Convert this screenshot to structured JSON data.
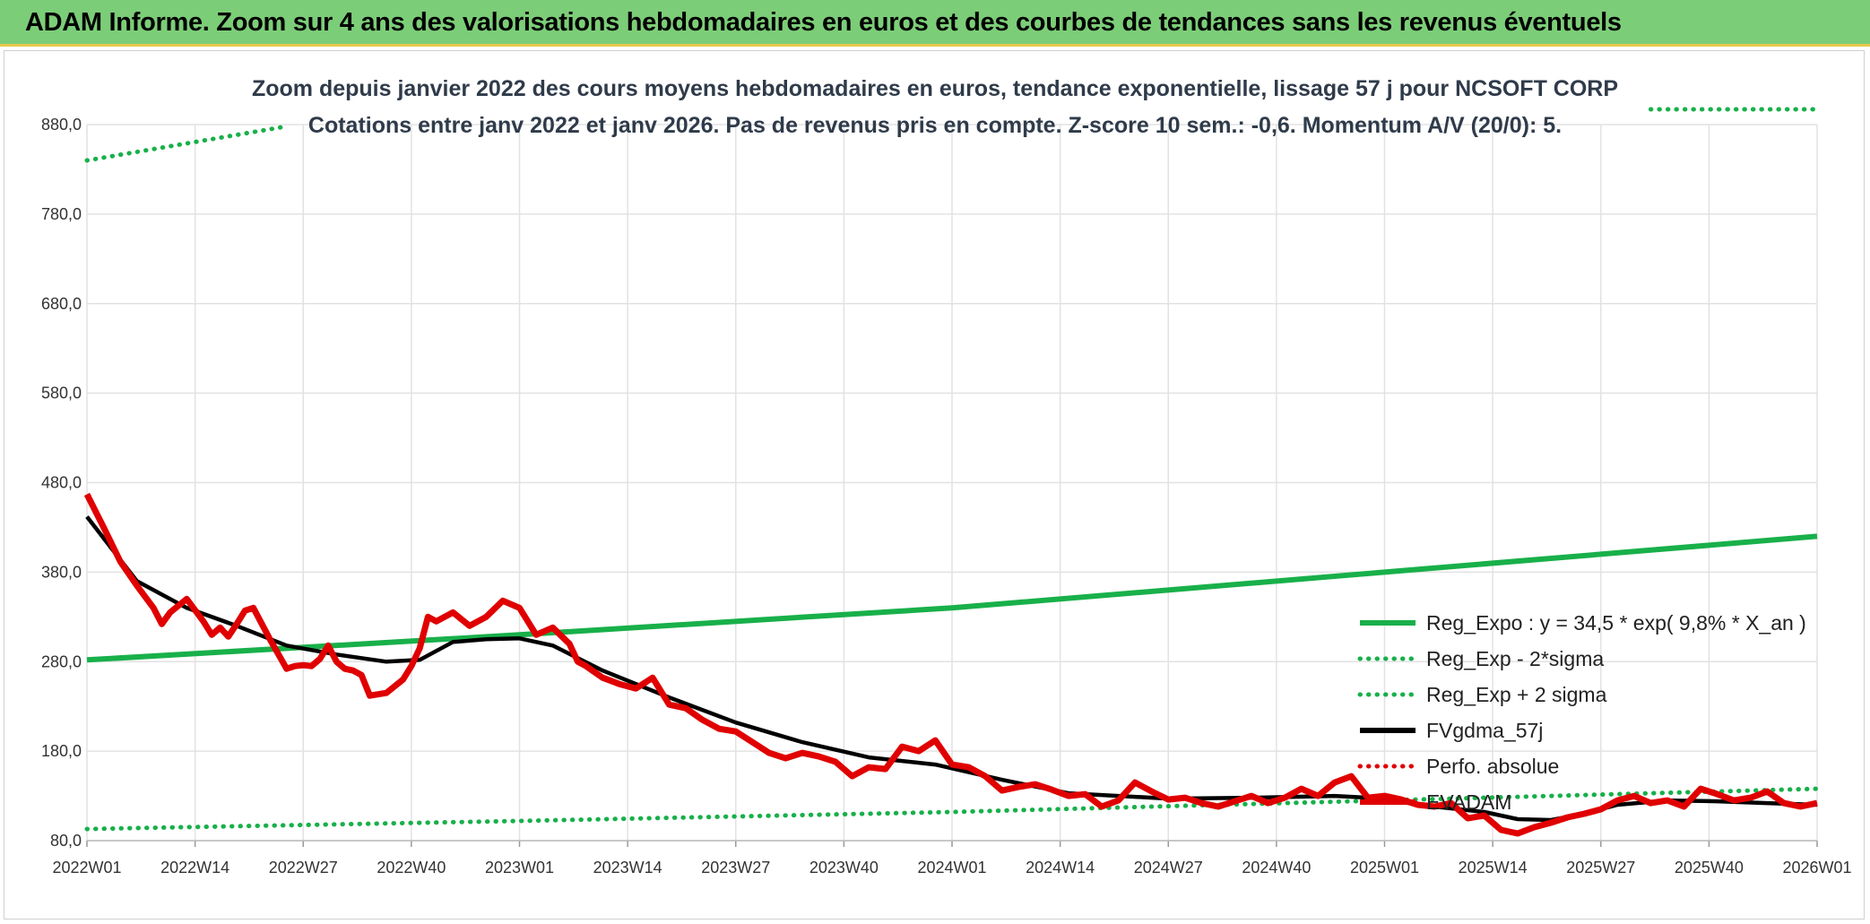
{
  "banner": {
    "title": "ADAM Informe. Zoom sur 4 ans des valorisations hebdomadaires en euros et des courbes de tendances sans les revenus éventuels"
  },
  "chart_data": {
    "type": "line",
    "title_line1": "Zoom depuis janvier 2022 des cours moyens hebdomadaires en euros, tendance exponentielle, lissage 57 j pour NCSOFT CORP",
    "title_line2": "Cotations entre janv 2022 et janv 2026. Pas de revenus pris en compte. Z-score 10 sem.: -0,6. Momentum A/V (20/0): 5.",
    "ylim": [
      80,
      880
    ],
    "y_ticks": [
      "880,0",
      "780,0",
      "680,0",
      "580,0",
      "480,0",
      "380,0",
      "280,0",
      "180,0",
      "80,0"
    ],
    "y_tick_values": [
      880,
      780,
      680,
      580,
      480,
      380,
      280,
      180,
      80
    ],
    "x_ticks": [
      "2022W01",
      "2022W14",
      "2022W27",
      "2022W40",
      "2023W01",
      "2023W14",
      "2023W27",
      "2023W40",
      "2024W01",
      "2024W14",
      "2024W27",
      "2024W40",
      "2025W01",
      "2025W14",
      "2025W27",
      "2025W40",
      "2026W01"
    ],
    "x_tick_weeks": [
      0,
      13,
      26,
      39,
      52,
      65,
      78,
      91,
      104,
      117,
      130,
      143,
      156,
      169,
      182,
      195,
      208
    ],
    "xlim_weeks": [
      0,
      208
    ],
    "grid": true,
    "legend_position": "right",
    "series": [
      {
        "name": "Reg_Expo : y = 34,5 * exp( 9,8% *  X_an )",
        "color": "#18b04a",
        "style": "solid",
        "x": [
          0,
          52,
          104,
          156,
          208
        ],
        "y": [
          282,
          310,
          340,
          380,
          420
        ]
      },
      {
        "name": "Reg_Exp - 2*sigma",
        "color": "#18b04a",
        "style": "dotted",
        "x": [
          0,
          52,
          104,
          156,
          208
        ],
        "y": [
          93,
          102,
          112,
          125,
          138
        ]
      },
      {
        "name": "Reg_Exp + 2 sigma",
        "color": "#18b04a",
        "style": "dotted",
        "x": [
          0,
          24
        ],
        "y": [
          840,
          878
        ],
        "x2": [
          188,
          208
        ],
        "y2": [
          897,
          897
        ]
      },
      {
        "name": "FVgdma_57j",
        "color": "#000000",
        "style": "solid",
        "x": [
          0,
          6,
          12,
          18,
          24,
          30,
          36,
          40,
          44,
          48,
          52,
          56,
          62,
          70,
          78,
          86,
          94,
          102,
          110,
          118,
          130,
          140,
          150,
          156,
          160,
          164,
          168,
          172,
          176,
          180,
          184,
          190,
          196,
          202,
          208
        ],
        "y": [
          442,
          370,
          340,
          320,
          298,
          288,
          280,
          282,
          302,
          305,
          306,
          298,
          270,
          240,
          212,
          190,
          173,
          165,
          148,
          133,
          127,
          128,
          130,
          127,
          120,
          116,
          112,
          104,
          103,
          110,
          120,
          125,
          124,
          122,
          120
        ]
      },
      {
        "name": "Perfo. absolue",
        "color": "#e00000",
        "style": "dotted",
        "x": [],
        "y": []
      },
      {
        "name": "EVADAM",
        "color": "#e00000",
        "style": "solid",
        "x": [
          0,
          2,
          4,
          6,
          8,
          9,
          10,
          12,
          14,
          15,
          16,
          17,
          18,
          19,
          20,
          22,
          24,
          25,
          26,
          27,
          28,
          29,
          30,
          31,
          32,
          33,
          34,
          36,
          38,
          39,
          40,
          41,
          42,
          44,
          46,
          47,
          48,
          50,
          52,
          54,
          56,
          58,
          59,
          60,
          62,
          64,
          66,
          68,
          70,
          72,
          74,
          76,
          78,
          80,
          82,
          84,
          86,
          88,
          90,
          92,
          94,
          96,
          98,
          100,
          102,
          104,
          106,
          108,
          110,
          112,
          114,
          116,
          118,
          120,
          122,
          124,
          126,
          128,
          130,
          132,
          134,
          136,
          138,
          140,
          142,
          144,
          146,
          148,
          150,
          152,
          154,
          156,
          158,
          160,
          162,
          164,
          166,
          168,
          170,
          172,
          174,
          176,
          178,
          180,
          182,
          184,
          186,
          188,
          190,
          192,
          194,
          196,
          198,
          200,
          202,
          204,
          206,
          208
        ],
        "y": [
          467,
          430,
          392,
          365,
          340,
          322,
          335,
          350,
          325,
          310,
          318,
          308,
          322,
          337,
          340,
          305,
          272,
          275,
          276,
          275,
          283,
          298,
          280,
          272,
          270,
          265,
          242,
          245,
          260,
          275,
          295,
          330,
          325,
          335,
          320,
          325,
          330,
          348,
          340,
          310,
          318,
          300,
          280,
          275,
          262,
          255,
          250,
          262,
          232,
          228,
          215,
          205,
          202,
          190,
          178,
          172,
          178,
          174,
          168,
          152,
          162,
          160,
          185,
          180,
          192,
          165,
          162,
          152,
          136,
          140,
          143,
          137,
          130,
          132,
          118,
          125,
          145,
          135,
          126,
          128,
          122,
          118,
          124,
          130,
          122,
          128,
          138,
          130,
          145,
          152,
          128,
          130,
          126,
          120,
          118,
          122,
          105,
          108,
          92,
          88,
          95,
          100,
          106,
          110,
          115,
          125,
          130,
          122,
          125,
          118,
          138,
          132,
          125,
          128,
          135,
          122,
          118,
          122
        ]
      }
    ]
  }
}
